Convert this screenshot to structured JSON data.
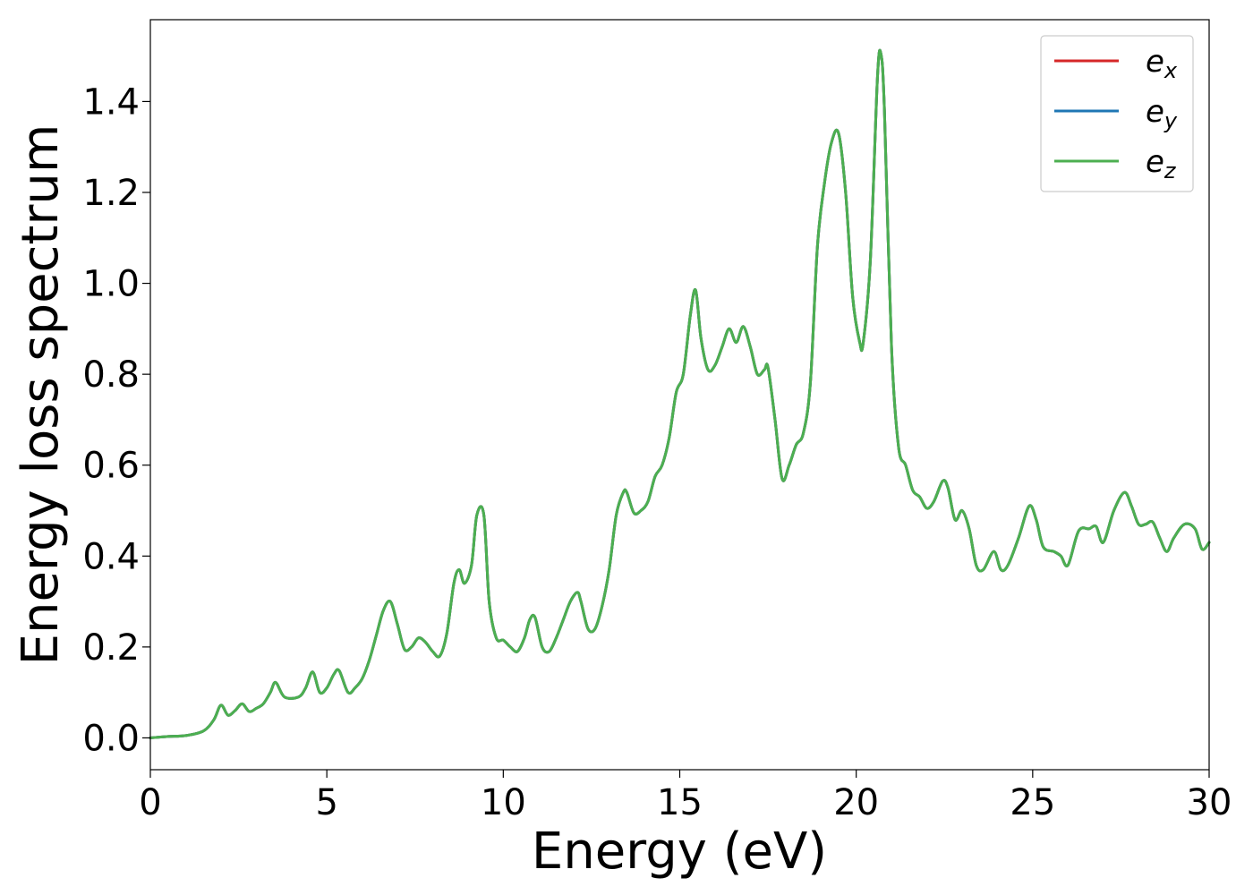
{
  "chart_data": {
    "type": "line",
    "xlabel": "Energy (eV)",
    "ylabel": "Energy loss spectrum",
    "xlim": [
      0,
      30
    ],
    "ylim": [
      -0.07,
      1.58
    ],
    "xticks": [
      0,
      5,
      10,
      15,
      20,
      25,
      30
    ],
    "xtick_labels": [
      "0",
      "5",
      "10",
      "15",
      "20",
      "25",
      "30"
    ],
    "yticks": [
      0.0,
      0.2,
      0.4,
      0.6,
      0.8,
      1.0,
      1.2,
      1.4
    ],
    "ytick_labels": [
      "0.0",
      "0.2",
      "0.4",
      "0.6",
      "0.8",
      "1.0",
      "1.2",
      "1.4"
    ],
    "grid": false,
    "legend": {
      "position": "top-right"
    },
    "x": [
      0,
      0.5,
      1.0,
      1.5,
      1.8,
      2.0,
      2.2,
      2.4,
      2.6,
      2.8,
      3.0,
      3.2,
      3.4,
      3.55,
      3.8,
      4.2,
      4.4,
      4.6,
      4.8,
      5.0,
      5.2,
      5.35,
      5.6,
      5.8,
      6.0,
      6.2,
      6.4,
      6.6,
      6.8,
      7.0,
      7.2,
      7.4,
      7.6,
      7.8,
      8.0,
      8.2,
      8.4,
      8.6,
      8.75,
      8.9,
      9.1,
      9.25,
      9.45,
      9.6,
      9.8,
      10.0,
      10.2,
      10.4,
      10.6,
      10.75,
      10.9,
      11.1,
      11.3,
      11.5,
      11.7,
      11.9,
      12.1,
      12.2,
      12.4,
      12.6,
      12.8,
      13.0,
      13.2,
      13.4,
      13.5,
      13.7,
      13.9,
      14.1,
      14.3,
      14.5,
      14.7,
      14.9,
      15.1,
      15.3,
      15.45,
      15.6,
      15.8,
      16.0,
      16.2,
      16.4,
      16.6,
      16.8,
      17.0,
      17.2,
      17.4,
      17.5,
      17.7,
      17.9,
      18.1,
      18.3,
      18.5,
      18.7,
      18.9,
      19.1,
      19.3,
      19.5,
      19.7,
      19.9,
      20.1,
      20.2,
      20.4,
      20.6,
      20.7,
      20.8,
      21.0,
      21.2,
      21.4,
      21.6,
      21.8,
      22.0,
      22.2,
      22.45,
      22.6,
      22.8,
      23.0,
      23.2,
      23.4,
      23.6,
      23.9,
      24.1,
      24.3,
      24.6,
      24.9,
      25.1,
      25.3,
      25.6,
      25.8,
      26.0,
      26.3,
      26.6,
      26.8,
      27.0,
      27.3,
      27.6,
      27.8,
      28.0,
      28.2,
      28.4,
      28.6,
      28.8,
      29.0,
      29.3,
      29.6,
      29.8,
      30.0
    ],
    "series": [
      {
        "name": "e_x",
        "legend_base": "e",
        "legend_sub": "x",
        "color": "#d62728"
      },
      {
        "name": "e_y",
        "legend_base": "e",
        "legend_sub": "y",
        "color": "#1f77b4"
      },
      {
        "name": "e_z",
        "legend_base": "e",
        "legend_sub": "z",
        "color": "#4caf50"
      }
    ],
    "y_shared": [
      0.0,
      0.003,
      0.005,
      0.015,
      0.04,
      0.072,
      0.05,
      0.06,
      0.075,
      0.058,
      0.065,
      0.075,
      0.1,
      0.122,
      0.09,
      0.09,
      0.11,
      0.145,
      0.1,
      0.11,
      0.14,
      0.148,
      0.1,
      0.11,
      0.13,
      0.17,
      0.225,
      0.28,
      0.3,
      0.25,
      0.195,
      0.2,
      0.22,
      0.21,
      0.19,
      0.18,
      0.23,
      0.34,
      0.37,
      0.34,
      0.38,
      0.49,
      0.49,
      0.3,
      0.22,
      0.215,
      0.2,
      0.19,
      0.22,
      0.26,
      0.265,
      0.2,
      0.19,
      0.22,
      0.26,
      0.3,
      0.32,
      0.3,
      0.24,
      0.24,
      0.29,
      0.37,
      0.49,
      0.54,
      0.54,
      0.495,
      0.5,
      0.52,
      0.575,
      0.6,
      0.66,
      0.76,
      0.8,
      0.93,
      0.985,
      0.88,
      0.81,
      0.82,
      0.86,
      0.9,
      0.87,
      0.905,
      0.86,
      0.8,
      0.81,
      0.815,
      0.7,
      0.57,
      0.6,
      0.645,
      0.67,
      0.78,
      1.08,
      1.22,
      1.31,
      1.33,
      1.2,
      0.97,
      0.87,
      0.87,
      1.05,
      1.45,
      1.505,
      1.38,
      0.86,
      0.64,
      0.6,
      0.545,
      0.53,
      0.505,
      0.52,
      0.565,
      0.55,
      0.48,
      0.5,
      0.46,
      0.38,
      0.37,
      0.41,
      0.37,
      0.38,
      0.44,
      0.51,
      0.48,
      0.42,
      0.41,
      0.4,
      0.38,
      0.455,
      0.46,
      0.465,
      0.43,
      0.5,
      0.54,
      0.51,
      0.47,
      0.47,
      0.475,
      0.44,
      0.41,
      0.44,
      0.47,
      0.46,
      0.415,
      0.43
    ]
  }
}
